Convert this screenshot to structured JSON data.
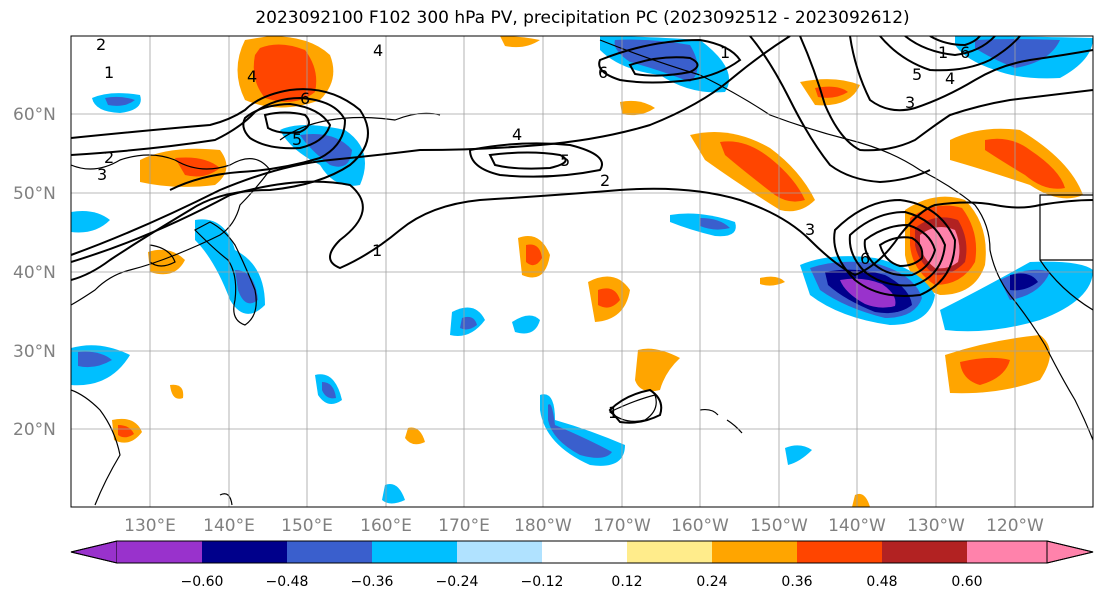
{
  "title": "2023092100 F102 300 hPa PV, precipitation PC (2023092512 - 2023092612)",
  "lat_labels": [
    "60°N",
    "50°N",
    "40°N",
    "30°N",
    "20°N"
  ],
  "lon_labels": [
    "130°E",
    "140°E",
    "150°E",
    "160°E",
    "170°E",
    "180°W",
    "170°W",
    "160°W",
    "150°W",
    "140°W",
    "130°W",
    "120°W"
  ],
  "colorbar": {
    "ticks": [
      "−0.60",
      "−0.48",
      "−0.36",
      "−0.24",
      "−0.12",
      "0.12",
      "0.24",
      "0.36",
      "0.48",
      "0.60"
    ],
    "colors": [
      "#9932cc",
      "#00008b",
      "#3a5fcd",
      "#00bfff",
      "#b0e2ff",
      "#ffffff",
      "#ffec8b",
      "#ffa500",
      "#ff4500",
      "#b22222",
      "#ff82ab"
    ]
  },
  "contour_labels": [
    "1",
    "2",
    "3",
    "4",
    "5",
    "6"
  ]
}
